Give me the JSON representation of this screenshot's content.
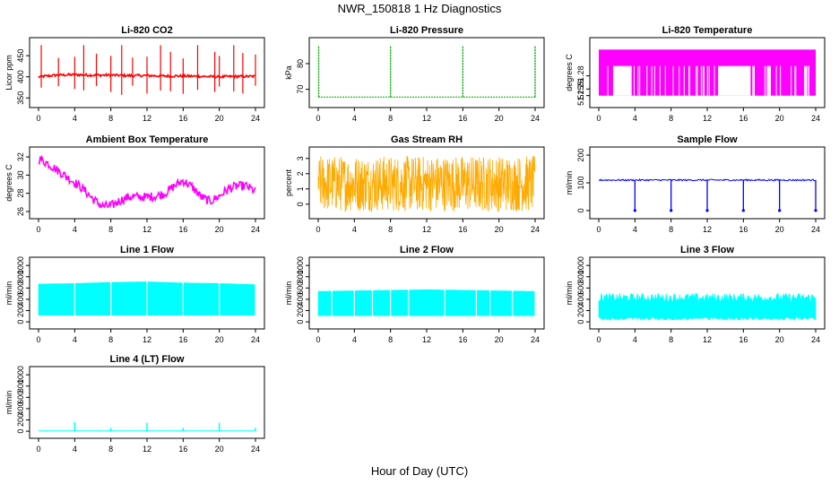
{
  "title": "NWR_150818  1 Hz Diagnostics",
  "xlabel": "Hour of Day (UTC)",
  "chart_data": [
    {
      "type": "line",
      "title": "Li-820 CO2",
      "ylabel": "Licor ppm",
      "color": "#ff0000",
      "xlim": [
        0,
        24
      ],
      "x_ticks": [
        0,
        4,
        8,
        12,
        16,
        20,
        24
      ],
      "ylim": [
        340,
        480
      ],
      "y_ticks": [
        350,
        400,
        450
      ],
      "series": [
        {
          "x": [
            0,
            2,
            4,
            6,
            8,
            10,
            12,
            14,
            16,
            18,
            20,
            22,
            24
          ],
          "y": [
            400,
            404,
            405,
            404,
            404,
            403,
            403,
            402,
            402,
            401,
            400,
            401,
            401
          ]
        }
      ],
      "spikes_x": [
        0.3,
        2.2,
        4.0,
        5.0,
        6.4,
        8.0,
        9.2,
        10.4,
        12.0,
        13.5,
        14.6,
        16.0,
        17.6,
        19.5,
        20.0,
        21.6,
        22.6,
        24.0
      ]
    },
    {
      "type": "line",
      "title": "Li-820 Pressure",
      "ylabel": "kPa",
      "color": "#00aa00",
      "xlim": [
        0,
        24
      ],
      "x_ticks": [
        0,
        4,
        8,
        12,
        16,
        20,
        24
      ],
      "ylim": [
        65,
        88
      ],
      "y_ticks": [
        70,
        80
      ],
      "series": [
        {
          "x": [
            0,
            24
          ],
          "y": [
            67,
            67
          ]
        }
      ],
      "spikes_x": [
        0.05,
        8.0,
        16.0,
        24.0
      ]
    },
    {
      "type": "area",
      "title": "Li-820 Temperature",
      "ylabel": "degrees C",
      "color": "#ff00ff",
      "xlim": [
        0,
        24
      ],
      "x_ticks": [
        0,
        4,
        8,
        12,
        16,
        20,
        24
      ],
      "ylim": [
        51.24,
        51.33
      ],
      "y_ticks": [
        51.25,
        51.26,
        51.28
      ],
      "series": [
        {
          "x": [
            0,
            24
          ],
          "y": [
            51.32,
            51.32
          ]
        }
      ],
      "range": [
        51.25,
        51.32
      ]
    },
    {
      "type": "line",
      "title": "Ambient Box Temperature",
      "ylabel": "degrees C",
      "color": "#ff00ff",
      "xlim": [
        0,
        24
      ],
      "x_ticks": [
        0,
        4,
        8,
        12,
        16,
        20,
        24
      ],
      "ylim": [
        25.8,
        32.5
      ],
      "y_ticks": [
        26,
        28,
        30,
        32
      ],
      "series": [
        {
          "x": [
            0,
            1,
            2,
            3,
            4,
            5,
            6,
            7,
            8,
            9,
            10,
            11,
            12,
            13,
            14,
            15,
            16,
            17,
            18,
            19,
            20,
            21,
            22,
            23,
            24
          ],
          "y": [
            31.8,
            31.3,
            30.6,
            29.9,
            29.2,
            28.4,
            27.4,
            26.6,
            26.6,
            27.2,
            27.6,
            27.6,
            27.6,
            27.7,
            28.0,
            28.8,
            29.4,
            28.7,
            27.6,
            27.1,
            27.7,
            28.5,
            28.8,
            28.8,
            28.2
          ]
        }
      ],
      "noise": 0.5
    },
    {
      "type": "line",
      "title": "Gas Stream RH",
      "ylabel": "percent",
      "color": "#ffaa00",
      "xlim": [
        0,
        24
      ],
      "x_ticks": [
        0,
        4,
        8,
        12,
        16,
        20,
        24
      ],
      "ylim": [
        -0.6,
        3.4
      ],
      "y_ticks": [
        0,
        1,
        2,
        3
      ],
      "series": [
        {
          "x": [
            0,
            24
          ],
          "y": [
            1.4,
            1.4
          ]
        }
      ],
      "range": [
        -0.5,
        3.2
      ]
    },
    {
      "type": "line",
      "title": "Sample Flow",
      "ylabel": "ml/min",
      "color": "#0000ff",
      "xlim": [
        0,
        24
      ],
      "x_ticks": [
        0,
        4,
        8,
        12,
        16,
        20,
        24
      ],
      "ylim": [
        -10,
        210
      ],
      "y_ticks": [
        0,
        100,
        200
      ],
      "series": [
        {
          "x": [
            0,
            24
          ],
          "y": [
            110,
            110
          ]
        }
      ],
      "dips_x": [
        4.0,
        8.0,
        12.0,
        16.0,
        20.0,
        24.0
      ]
    },
    {
      "type": "area",
      "title": "Line 1 Flow",
      "ylabel": "ml/min",
      "color": "#00ffff",
      "xlim": [
        0,
        24
      ],
      "x_ticks": [
        0,
        4,
        8,
        12,
        16,
        20,
        24
      ],
      "ylim": [
        -30,
        1050
      ],
      "y_ticks": [
        0,
        200,
        400,
        600,
        800,
        1000
      ],
      "series": [
        {
          "x": [
            0,
            4,
            8,
            12,
            16,
            20,
            24
          ],
          "y": [
            670,
            680,
            700,
            710,
            690,
            680,
            660
          ]
        }
      ],
      "low": 120,
      "gaps_x": [
        4.0,
        8.0,
        12.0,
        16.0,
        20.0,
        24.0
      ]
    },
    {
      "type": "area",
      "title": "Line 2 Flow",
      "ylabel": "ml/min",
      "color": "#00ffff",
      "xlim": [
        0,
        24
      ],
      "x_ticks": [
        0,
        4,
        8,
        12,
        16,
        20,
        24
      ],
      "ylim": [
        -30,
        1050
      ],
      "y_ticks": [
        0,
        200,
        400,
        600,
        800,
        1000
      ],
      "series": [
        {
          "x": [
            0,
            4,
            8,
            12,
            16,
            20,
            24
          ],
          "y": [
            540,
            550,
            560,
            570,
            560,
            550,
            540
          ]
        }
      ],
      "low": 110,
      "gaps_x": [
        1.5,
        4.0,
        6.0,
        8.0,
        10.0,
        14.0,
        17.5,
        19.0,
        21.5,
        24.0
      ]
    },
    {
      "type": "area",
      "title": "Line 3 Flow",
      "ylabel": "ml/min",
      "color": "#00ffff",
      "xlim": [
        0,
        24
      ],
      "x_ticks": [
        0,
        4,
        8,
        12,
        16,
        20,
        24
      ],
      "ylim": [
        -30,
        1050
      ],
      "y_ticks": [
        0,
        200,
        400,
        600,
        800,
        1000
      ],
      "series": [
        {
          "x": [
            0,
            24
          ],
          "y": [
            430,
            430
          ]
        }
      ],
      "low": 60,
      "noise": 80
    },
    {
      "type": "line",
      "title": "Line 4 (LT) Flow",
      "ylabel": "ml/min",
      "color": "#00ffff",
      "xlim": [
        0,
        24
      ],
      "x_ticks": [
        0,
        4,
        8,
        12,
        16,
        20,
        24
      ],
      "ylim": [
        -30,
        1050
      ],
      "y_ticks": [
        0,
        200,
        400,
        600,
        800,
        1000
      ],
      "series": [
        {
          "x": [
            0,
            24
          ],
          "y": [
            5,
            5
          ]
        }
      ],
      "spikes_x": [
        4.0,
        8.0,
        12.0,
        16.0,
        20.0,
        24.0
      ],
      "spikes_y": [
        160,
        60,
        150,
        60,
        150,
        60
      ]
    }
  ]
}
